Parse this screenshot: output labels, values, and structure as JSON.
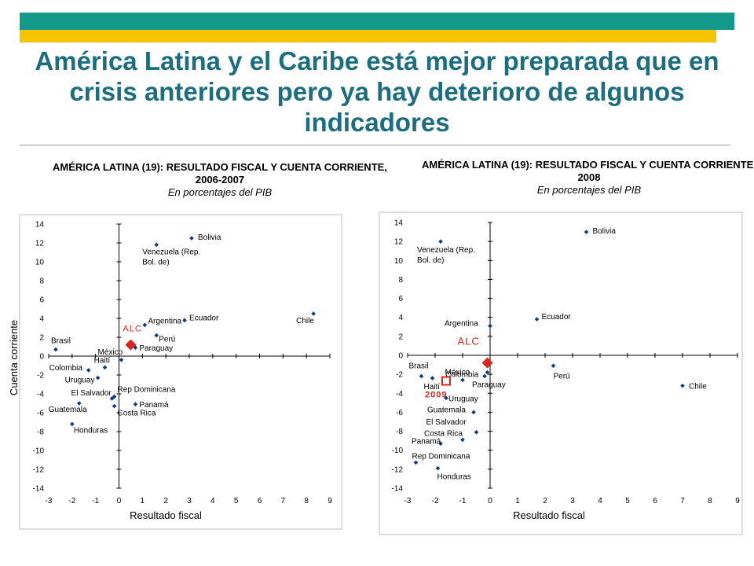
{
  "title": "América Latina y el Caribe está mejor preparada que en crisis anteriores pero ya hay deterioro de algunos indicadores",
  "chart_data": [
    {
      "type": "scatter",
      "title": "AMÉRICA LATINA (19): RESULTADO FISCAL Y CUENTA CORRIENTE, 2006-2007",
      "subtitle": "En porcentajes del PIB",
      "xlabel": "Resultado fiscal",
      "ylabel": "Cuenta corriente",
      "xlim": [
        -3,
        9
      ],
      "ylim": [
        -14,
        14
      ],
      "xticks": [
        -3,
        -2,
        -1,
        0,
        1,
        2,
        3,
        4,
        5,
        6,
        7,
        8,
        9
      ],
      "yticks": [
        14,
        12,
        10,
        8,
        6,
        4,
        2,
        0,
        -2,
        -4,
        -6,
        -8,
        -10,
        -12,
        -14
      ],
      "grid": false,
      "points": [
        {
          "label": "Bolivia",
          "x": 3.1,
          "y": 12.5
        },
        {
          "label": "Venezuela (Rep. Bol. de)",
          "x": 1.6,
          "y": 11.8
        },
        {
          "label": "Chile",
          "x": 8.3,
          "y": 4.5
        },
        {
          "label": "Ecuador",
          "x": 2.8,
          "y": 3.8
        },
        {
          "label": "Argentina",
          "x": 1.1,
          "y": 3.3
        },
        {
          "label": "Perú",
          "x": 1.6,
          "y": 2.2
        },
        {
          "label": "Paraguay",
          "x": 0.7,
          "y": 0.9
        },
        {
          "label": "Brasil",
          "x": -2.7,
          "y": 0.7
        },
        {
          "label": "México",
          "x": 0.1,
          "y": -0.4
        },
        {
          "label": "Haití",
          "x": -0.6,
          "y": -1.2
        },
        {
          "label": "Colombia",
          "x": -1.3,
          "y": -1.5
        },
        {
          "label": "Uruguay",
          "x": -0.9,
          "y": -2.3
        },
        {
          "label": "El Salvador",
          "x": -0.3,
          "y": -4.5
        },
        {
          "label": "Rep Dominicana",
          "x": -0.2,
          "y": -4.3
        },
        {
          "label": "Panamá",
          "x": 0.7,
          "y": -5.1
        },
        {
          "label": "Costa Rica",
          "x": -0.2,
          "y": -5.3
        },
        {
          "label": "Guatemala",
          "x": -1.7,
          "y": -5.0
        },
        {
          "label": "Honduras",
          "x": -2.0,
          "y": -7.2
        }
      ],
      "highlights": [
        {
          "label": "ALC",
          "x": 0.5,
          "y": 1.2,
          "color": "#d9261c",
          "shape": "diamond"
        }
      ],
      "point_color": "#0b3a8a"
    },
    {
      "type": "scatter",
      "title": "AMÉRICA LATINA (19): RESULTADO FISCAL Y CUENTA CORRIENTE, 2008",
      "subtitle": "En porcentajes del PIB",
      "xlabel": "Resultado fiscal",
      "ylabel": "",
      "xlim": [
        -3,
        9
      ],
      "ylim": [
        -14,
        14
      ],
      "xticks": [
        -3,
        -2,
        -1,
        0,
        1,
        2,
        3,
        4,
        5,
        6,
        7,
        8,
        9
      ],
      "yticks": [
        14,
        12,
        10,
        8,
        6,
        4,
        2,
        0,
        -2,
        -4,
        -6,
        -8,
        -10,
        -12,
        -14
      ],
      "grid": false,
      "points": [
        {
          "label": "Bolivia",
          "x": 3.5,
          "y": 13.0
        },
        {
          "label": "Venezuela (Rep. Bol. de)",
          "x": -1.8,
          "y": 12.0
        },
        {
          "label": "Ecuador",
          "x": 1.7,
          "y": 3.8
        },
        {
          "label": "Argentina",
          "x": 0.0,
          "y": 3.1
        },
        {
          "label": "México",
          "x": -0.1,
          "y": -1.8
        },
        {
          "label": "Perú",
          "x": 2.3,
          "y": -1.1
        },
        {
          "label": "Chile",
          "x": 7.0,
          "y": -3.2
        },
        {
          "label": "Brasil",
          "x": -2.5,
          "y": -2.2
        },
        {
          "label": "Colombia",
          "x": -1.0,
          "y": -2.6
        },
        {
          "label": "Haití",
          "x": -2.1,
          "y": -2.4
        },
        {
          "label": "Paraguay",
          "x": -0.2,
          "y": -2.2
        },
        {
          "label": "Uruguay",
          "x": -1.6,
          "y": -4.5
        },
        {
          "label": "Guatemala",
          "x": -0.6,
          "y": -6.0
        },
        {
          "label": "El Salvador",
          "x": -0.5,
          "y": -8.1
        },
        {
          "label": "Costa Rica",
          "x": -1.0,
          "y": -8.9
        },
        {
          "label": "Panamá",
          "x": -1.8,
          "y": -9.3
        },
        {
          "label": "Rep Dominicana",
          "x": -2.7,
          "y": -11.3
        },
        {
          "label": "Honduras",
          "x": -1.9,
          "y": -11.9
        }
      ],
      "highlights": [
        {
          "label": "ALC",
          "x": -0.1,
          "y": -0.8,
          "color": "#d9261c",
          "shape": "diamond"
        },
        {
          "label": "2009",
          "x": -1.6,
          "y": -2.7,
          "color": "#d9261c",
          "shape": "square"
        }
      ],
      "point_color": "#0b3a8a"
    }
  ]
}
